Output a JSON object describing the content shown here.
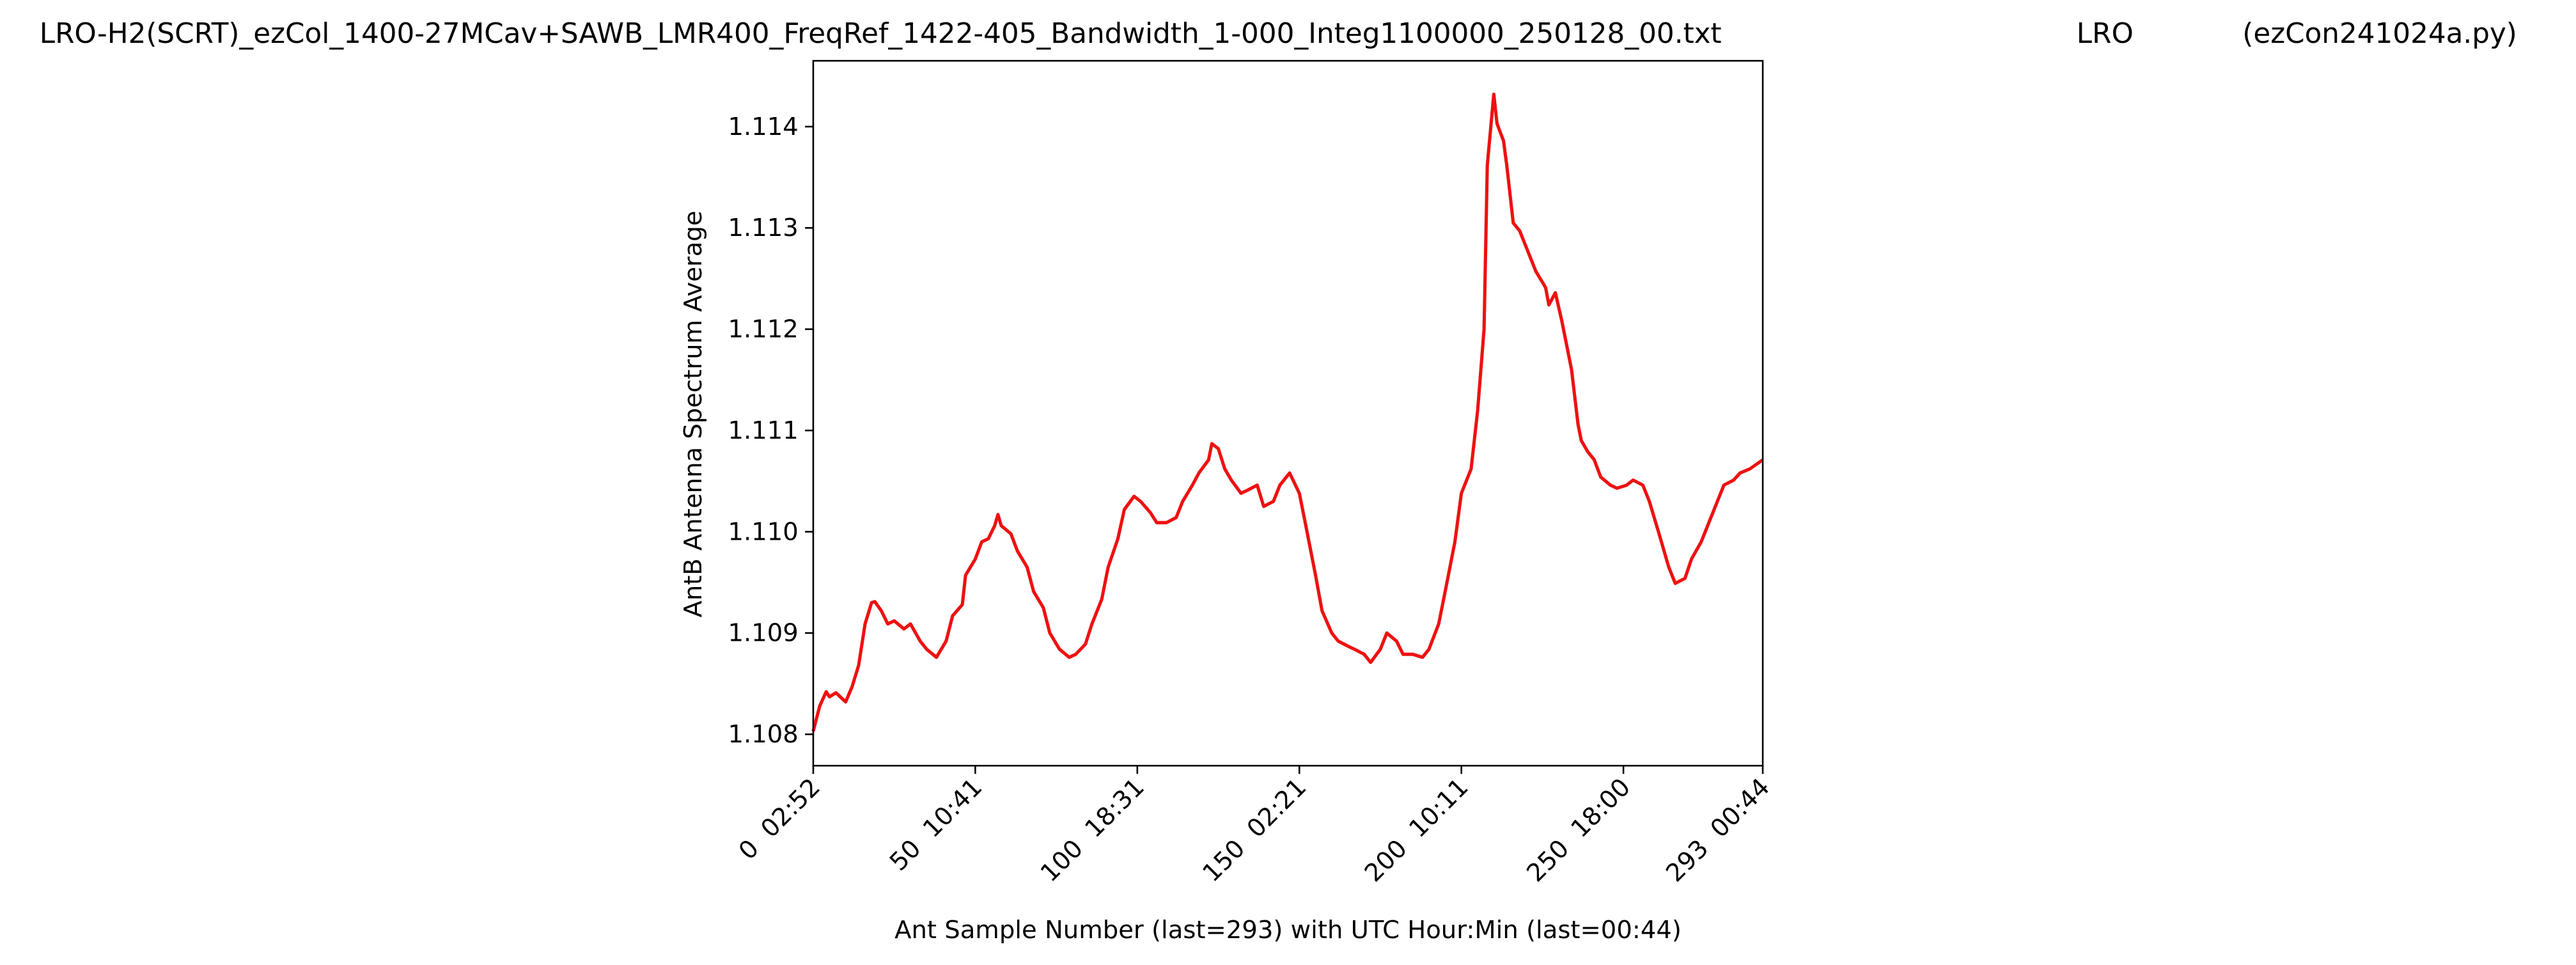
{
  "chart_data": {
    "type": "line",
    "title": "LRO-H2(SCRT)_ezCol_1400-27MCav+SAWB_LMR400_FreqRef_1422-405_Bandwidth_1-000_Integ1100000_250128_00.txt",
    "annotations": [
      "LRO",
      "(ezCon241024a.py)"
    ],
    "x_label": "Ant Sample Number (last=293) with UTC Hour:Min (last=00:44)",
    "y_label": "AntB Antenna Spectrum Average",
    "xlim": [
      0,
      293
    ],
    "ylim": [
      1.10769,
      1.11465
    ],
    "xticks": [
      {
        "value": 0,
        "label": "0  02:52"
      },
      {
        "value": 50,
        "label": "50  10:41"
      },
      {
        "value": 100,
        "label": "100  18:31"
      },
      {
        "value": 150,
        "label": "150  02:21"
      },
      {
        "value": 200,
        "label": "200  10:11"
      },
      {
        "value": 250,
        "label": "250  18:00"
      },
      {
        "value": 293,
        "label": "293  00:44"
      }
    ],
    "yticks": [
      1.108,
      1.109,
      {
        "value": 1.11,
        "label": "1.110"
      },
      1.111,
      1.112,
      1.113,
      1.114
    ],
    "x": [
      0,
      2,
      4,
      5,
      7,
      10,
      12,
      14,
      16,
      18,
      19,
      21,
      23,
      25,
      28,
      30,
      33,
      35,
      38,
      41,
      43,
      46,
      47,
      50,
      52,
      54,
      56,
      57,
      58,
      61,
      63,
      66,
      68,
      71,
      73,
      76,
      79,
      81,
      84,
      86,
      89,
      91,
      94,
      96,
      99,
      101,
      104,
      106,
      109,
      112,
      114,
      117,
      119,
      122,
      123,
      125,
      127,
      129,
      132,
      134,
      137,
      139,
      142,
      144,
      147,
      150,
      152,
      155,
      157,
      160,
      162,
      165,
      167,
      170,
      172,
      175,
      177,
      180,
      182,
      185,
      188,
      190,
      193,
      195,
      198,
      200,
      203,
      205,
      207,
      208,
      210,
      211,
      213,
      214,
      216,
      218,
      220,
      223,
      226,
      227,
      229,
      231,
      232,
      234,
      236,
      237,
      239,
      241,
      243,
      246,
      248,
      251,
      253,
      256,
      258,
      261,
      264,
      266,
      269,
      271,
      274,
      276,
      279,
      281,
      284,
      286,
      289,
      293
    ],
    "series": [
      {
        "color": "#ee1111",
        "values": [
          1.10803,
          1.10828,
          1.10842,
          1.10837,
          1.10841,
          1.10832,
          1.10847,
          1.10868,
          1.10909,
          1.1093,
          1.10931,
          1.10922,
          1.10909,
          1.10912,
          1.10904,
          1.10909,
          1.10892,
          1.10884,
          1.10876,
          1.10892,
          1.10917,
          1.10928,
          1.10957,
          1.10973,
          1.1099,
          1.10993,
          1.11006,
          1.11017,
          1.11006,
          1.10998,
          1.10981,
          1.10965,
          1.10941,
          1.10925,
          1.109,
          1.10884,
          1.10876,
          1.10879,
          1.10889,
          1.10909,
          1.10933,
          1.10965,
          1.10993,
          1.11022,
          1.11035,
          1.1103,
          1.11019,
          1.11009,
          1.11009,
          1.11014,
          1.1103,
          1.11046,
          1.11058,
          1.11071,
          1.11087,
          1.11082,
          1.11062,
          1.11051,
          1.11038,
          1.11041,
          1.11046,
          1.11025,
          1.1103,
          1.11046,
          1.11058,
          1.11038,
          1.11006,
          1.10957,
          1.10922,
          1.109,
          1.10892,
          1.10887,
          1.10884,
          1.10879,
          1.10871,
          1.10884,
          1.109,
          1.10892,
          1.10879,
          1.10879,
          1.10876,
          1.10884,
          1.10909,
          1.10941,
          1.1099,
          1.11038,
          1.11062,
          1.11119,
          1.112,
          1.11362,
          1.11432,
          1.11403,
          1.11386,
          1.11362,
          1.11305,
          1.11297,
          1.11281,
          1.11257,
          1.11241,
          1.11224,
          1.11236,
          1.11208,
          1.11192,
          1.1116,
          1.11106,
          1.1109,
          1.11079,
          1.11071,
          1.11054,
          1.11046,
          1.11043,
          1.11046,
          1.11051,
          1.11046,
          1.1103,
          1.10998,
          1.10965,
          1.10949,
          1.10954,
          1.10973,
          1.1099,
          1.11006,
          1.1103,
          1.11046,
          1.11051,
          1.11058,
          1.11062,
          1.11071
        ]
      }
    ]
  }
}
